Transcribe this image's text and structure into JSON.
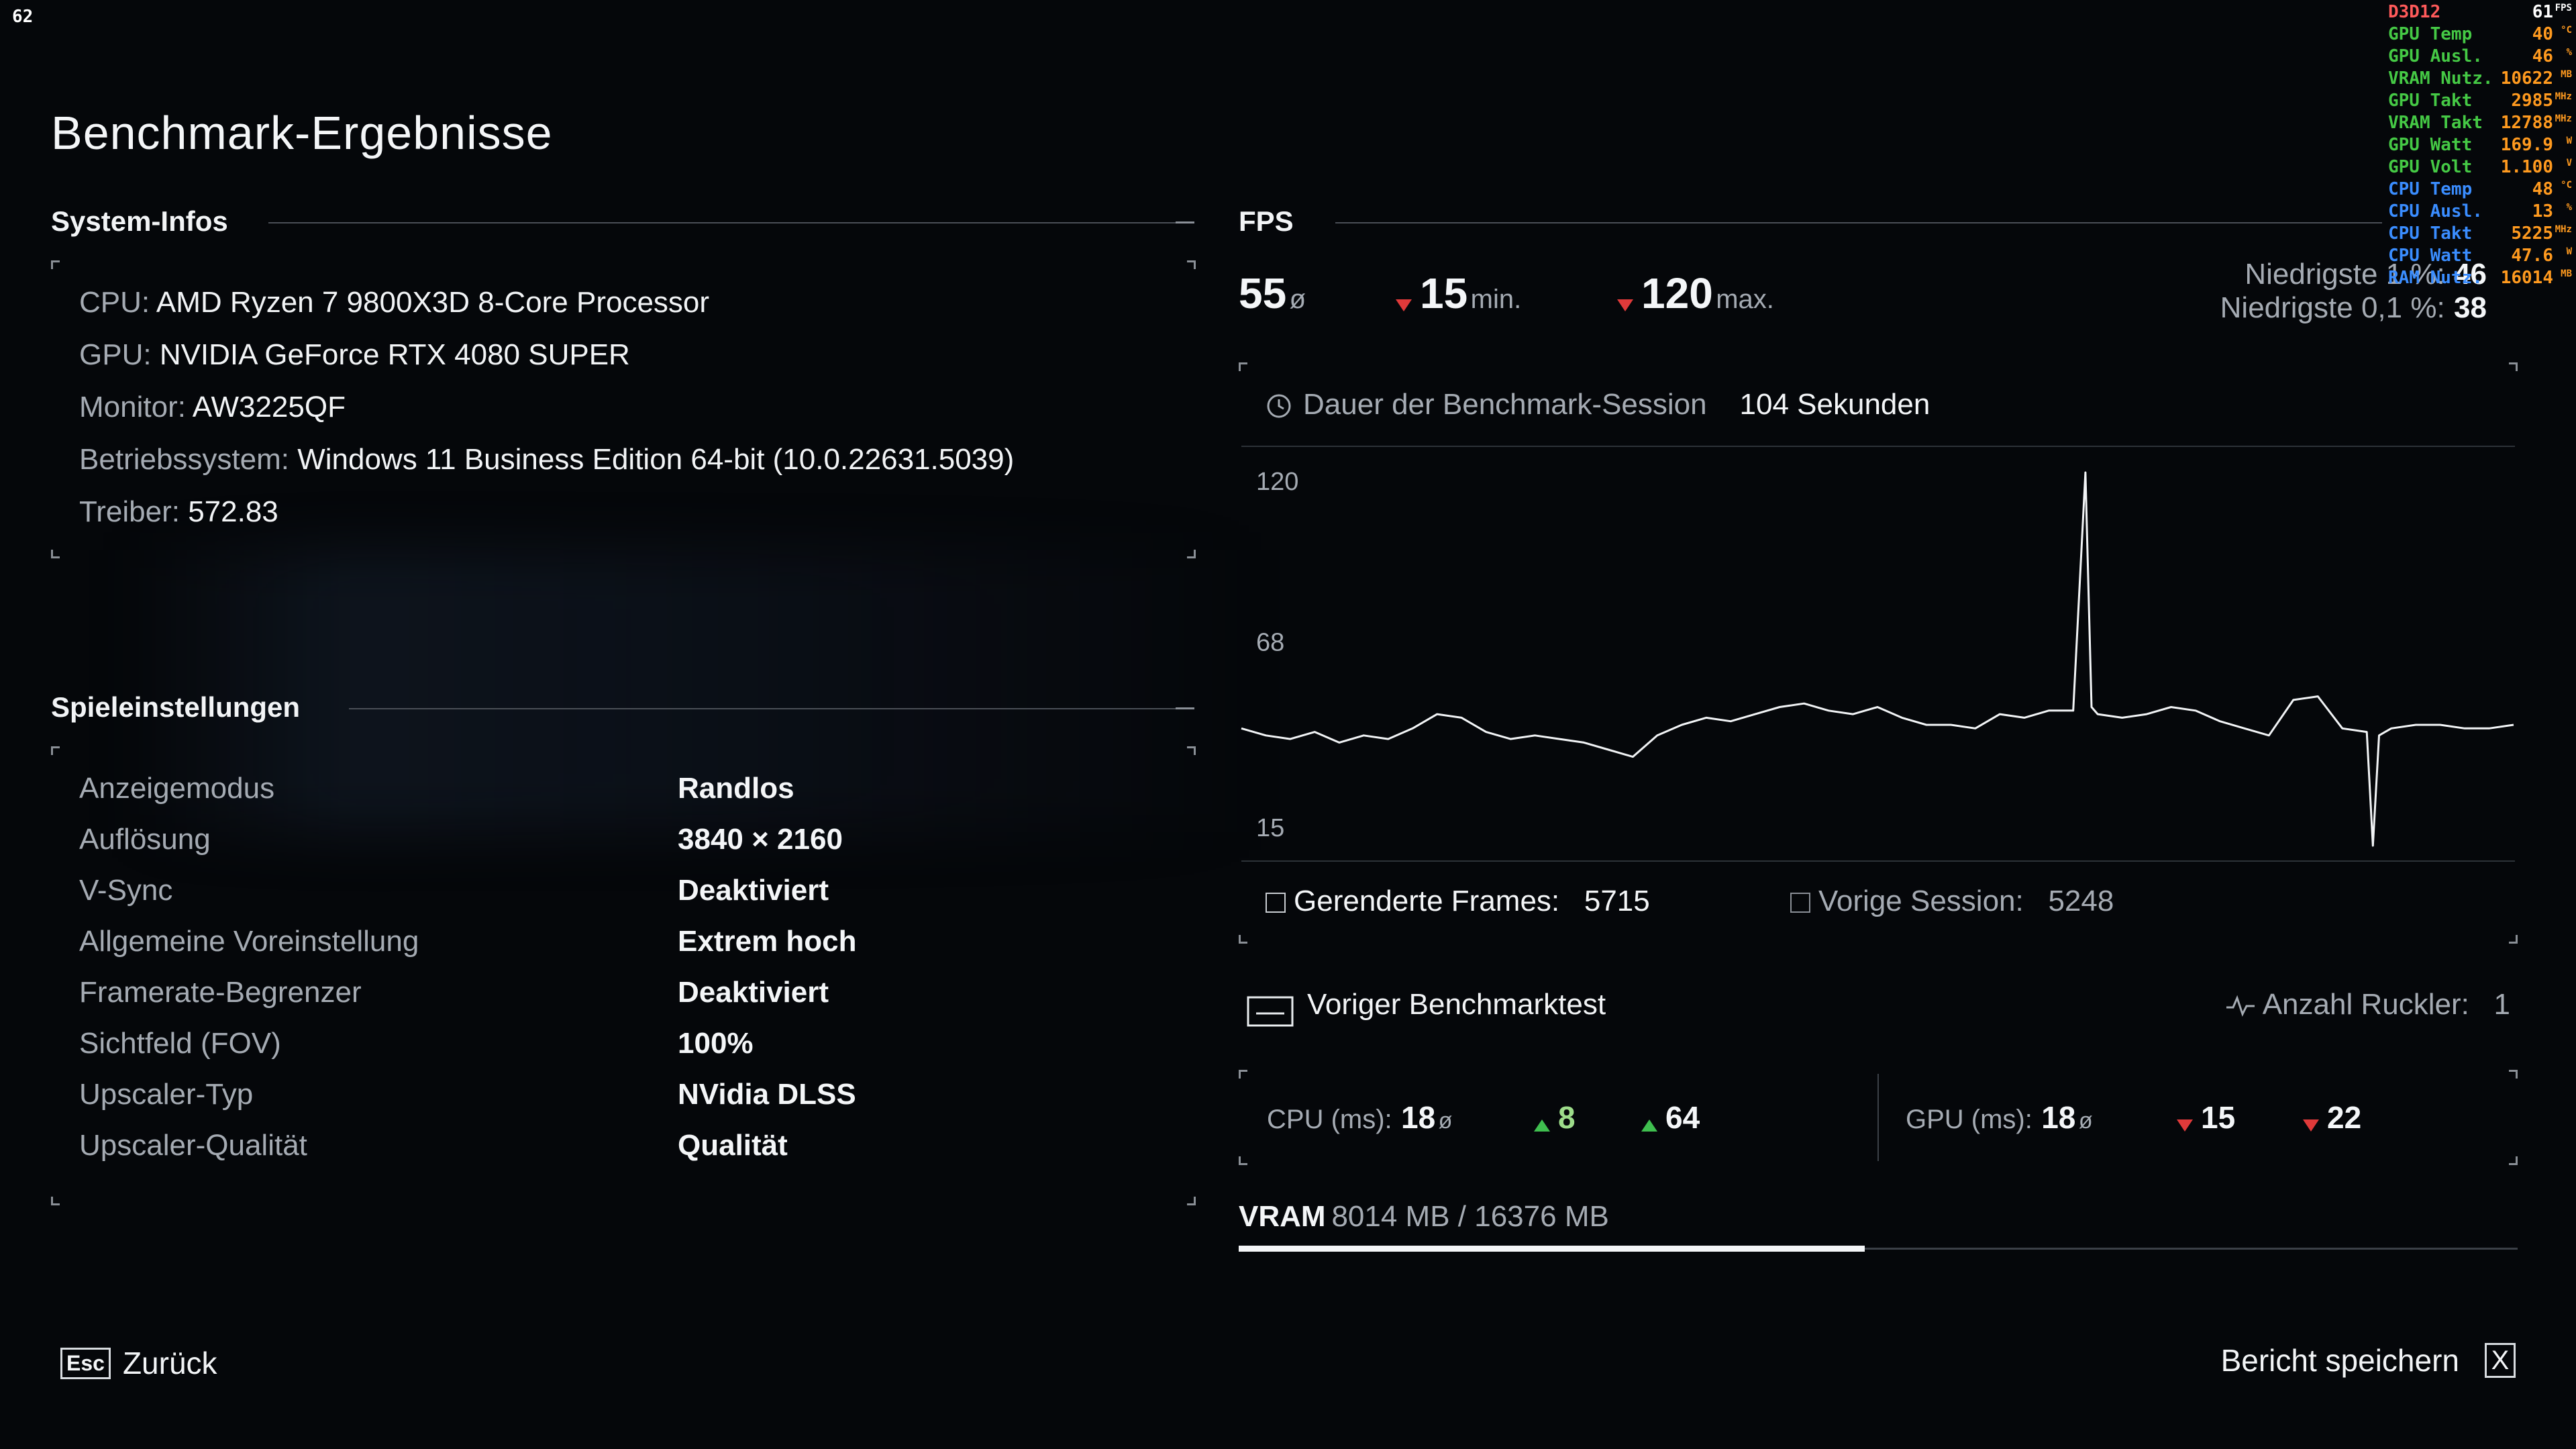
{
  "frame_counter": "62",
  "title": "Benchmark-Ergebnisse",
  "system": {
    "heading": "System-Infos",
    "rows": [
      {
        "label": "CPU:",
        "value": "AMD Ryzen 7 9800X3D 8-Core Processor"
      },
      {
        "label": "GPU:",
        "value": "NVIDIA GeForce RTX 4080 SUPER"
      },
      {
        "label": "Monitor:",
        "value": "AW3225QF"
      },
      {
        "label": "Betriebssystem:",
        "value": "Windows 11 Business Edition 64-bit (10.0.22631.5039)"
      },
      {
        "label": "Treiber:",
        "value": "572.83"
      }
    ]
  },
  "settings": {
    "heading": "Spieleinstellungen",
    "rows": [
      {
        "label": "Anzeigemodus",
        "value": "Randlos"
      },
      {
        "label": "Auflösung",
        "value": "3840 × 2160"
      },
      {
        "label": "V-Sync",
        "value": "Deaktiviert"
      },
      {
        "label": "Allgemeine Voreinstellung",
        "value": "Extrem hoch"
      },
      {
        "label": "Framerate-Begrenzer",
        "value": "Deaktiviert"
      },
      {
        "label": "Sichtfeld (FOV)",
        "value": "100%"
      },
      {
        "label": "Upscaler-Typ",
        "value": "NVidia DLSS"
      },
      {
        "label": "Upscaler-Qualität",
        "value": "Qualität"
      }
    ]
  },
  "fps": {
    "heading": "FPS",
    "avg": "55",
    "avg_unit": "ø",
    "min": "15",
    "min_unit": "min.",
    "max": "120",
    "max_unit": "max.",
    "low1_label": "Niedrigste 1 %:",
    "low1_value": "46",
    "low01_label": "Niedrigste 0,1 %:",
    "low01_value": "38",
    "duration_label": "Dauer der Benchmark-Session",
    "duration_value": "104 Sekunden",
    "rendered_label": "Gerenderte Frames:",
    "rendered_value": "5715",
    "previous_label": "Vorige Session:",
    "previous_value": "5248",
    "previous_test_label": "Voriger Benchmarktest",
    "stutter_label": "Anzahl Ruckler:",
    "stutter_value": "1"
  },
  "chart_data": {
    "type": "line",
    "title": "",
    "xlabel": "",
    "ylabel": "",
    "y_ticks": [
      "120",
      "68",
      "15"
    ],
    "ylim": [
      15,
      120
    ],
    "xlim": [
      0,
      104
    ],
    "series": [
      {
        "x": [
          0,
          2,
          4,
          6,
          8,
          10,
          12,
          14,
          16,
          18,
          20,
          22,
          24,
          26,
          28,
          30,
          32,
          34,
          36,
          38,
          40,
          42,
          44,
          46,
          48,
          50,
          52,
          54,
          56,
          58,
          60,
          62,
          64,
          66,
          68,
          69,
          69.5,
          70,
          72,
          74,
          76,
          78,
          80,
          82,
          84,
          86,
          88,
          90,
          92,
          92.5,
          93,
          94,
          96,
          98,
          100,
          102,
          104
        ],
        "y": [
          48,
          46,
          45,
          47,
          44,
          46,
          45,
          48,
          52,
          51,
          47,
          45,
          46,
          45,
          44,
          42,
          40,
          46,
          49,
          51,
          50,
          52,
          54,
          55,
          53,
          52,
          54,
          51,
          49,
          49,
          48,
          52,
          51,
          53,
          53,
          120,
          54,
          52,
          51,
          52,
          54,
          53,
          50,
          48,
          46,
          56,
          57,
          48,
          47,
          15,
          46,
          48,
          49,
          49,
          48,
          48,
          49
        ]
      }
    ]
  },
  "cpu_ms": {
    "label": "CPU (ms):",
    "avg": "18",
    "avg_unit": "ø",
    "min": "8",
    "max": "64"
  },
  "gpu_ms": {
    "label": "GPU (ms):",
    "avg": "18",
    "avg_unit": "ø",
    "min": "15",
    "max": "22"
  },
  "vram": {
    "label": "VRAM",
    "value": "8014 MB / 16376 MB",
    "used": 8014,
    "total": 16376
  },
  "footer": {
    "esc_key": "Esc",
    "back_label": "Zurück",
    "save_label": "Bericht speichern",
    "save_key": "X"
  },
  "osd": [
    {
      "name": "D3D12",
      "value": "61",
      "unit": "FPS",
      "name_color": "#ff5a5a",
      "value_color": "#ffffff"
    },
    {
      "name": "GPU Temp",
      "value": "40",
      "unit": "°C",
      "name_color": "#45c945",
      "value_color": "#ff9a1f"
    },
    {
      "name": "GPU Ausl.",
      "value": "46",
      "unit": "%",
      "name_color": "#45c945",
      "value_color": "#ff9a1f"
    },
    {
      "name": "VRAM Nutz.",
      "value": "10622",
      "unit": "MB",
      "name_color": "#45c945",
      "value_color": "#ff9a1f"
    },
    {
      "name": "GPU Takt",
      "value": "2985",
      "unit": "MHz",
      "name_color": "#45c945",
      "value_color": "#ff9a1f"
    },
    {
      "name": "VRAM Takt",
      "value": "12788",
      "unit": "MHz",
      "name_color": "#45c945",
      "value_color": "#ff9a1f"
    },
    {
      "name": "GPU Watt",
      "value": "169.9",
      "unit": "W",
      "name_color": "#45c945",
      "value_color": "#ff9a1f"
    },
    {
      "name": "GPU Volt",
      "value": "1.100",
      "unit": "V",
      "name_color": "#45c945",
      "value_color": "#ff9a1f"
    },
    {
      "name": "CPU Temp",
      "value": "48",
      "unit": "°C",
      "name_color": "#3a8dff",
      "value_color": "#ff9a1f"
    },
    {
      "name": "CPU Ausl.",
      "value": "13",
      "unit": "%",
      "name_color": "#3a8dff",
      "value_color": "#ff9a1f"
    },
    {
      "name": "CPU Takt",
      "value": "5225",
      "unit": "MHz",
      "name_color": "#3a8dff",
      "value_color": "#ff9a1f"
    },
    {
      "name": "CPU Watt",
      "value": "47.6",
      "unit": "W",
      "name_color": "#3a8dff",
      "value_color": "#ff9a1f"
    },
    {
      "name": "RAM Nutz.",
      "value": "16014",
      "unit": "MB",
      "name_color": "#3a8dff",
      "value_color": "#ff9a1f"
    }
  ]
}
